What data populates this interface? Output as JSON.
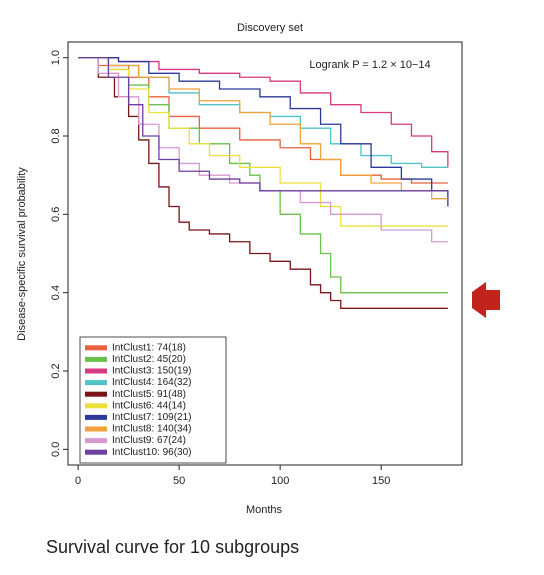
{
  "chart_data": {
    "type": "step",
    "title": "Discovery set",
    "annotation": "Logrank P = 1.2 × 10−14",
    "xlabel": "Months",
    "ylabel": "Disease-specific survival probability",
    "caption": "Survival curve for 10 subgroups",
    "xlim": [
      -5,
      190
    ],
    "ylim": [
      -0.04,
      1.04
    ],
    "xticks": [
      0,
      50,
      100,
      150
    ],
    "yticks": [
      {
        "value": 0,
        "label": "0.0"
      },
      0.2,
      0.4,
      0.6,
      0.8,
      {
        "value": 1,
        "label": "1.0"
      }
    ],
    "legend": "lower left",
    "series": [
      {
        "name": "IntClust1: 74(18)",
        "color": "#e8603c",
        "x": [
          0,
          10,
          25,
          35,
          45,
          60,
          80,
          100,
          115,
          130,
          150,
          165,
          183
        ],
        "values": [
          1.0,
          0.98,
          0.95,
          0.9,
          0.85,
          0.82,
          0.79,
          0.77,
          0.74,
          0.7,
          0.69,
          0.68,
          0.68
        ]
      },
      {
        "name": "IntClust2: 45(20)",
        "color": "#6abf4b",
        "x": [
          0,
          15,
          25,
          35,
          45,
          60,
          75,
          85,
          90,
          100,
          110,
          120,
          125,
          130,
          183
        ],
        "values": [
          1.0,
          0.97,
          0.93,
          0.88,
          0.82,
          0.78,
          0.73,
          0.7,
          0.66,
          0.6,
          0.55,
          0.5,
          0.44,
          0.4,
          0.4
        ]
      },
      {
        "name": "IntClust3: 150(19)",
        "color": "#d63a7f",
        "x": [
          0,
          20,
          40,
          60,
          80,
          95,
          110,
          125,
          140,
          155,
          165,
          175,
          183
        ],
        "values": [
          1.0,
          0.99,
          0.97,
          0.96,
          0.95,
          0.94,
          0.91,
          0.88,
          0.86,
          0.83,
          0.8,
          0.76,
          0.72
        ]
      },
      {
        "name": "IntClust4: 164(32)",
        "color": "#4fc3c8",
        "x": [
          0,
          15,
          30,
          45,
          60,
          80,
          95,
          110,
          125,
          140,
          155,
          170,
          183
        ],
        "values": [
          1.0,
          0.98,
          0.95,
          0.91,
          0.88,
          0.86,
          0.85,
          0.82,
          0.78,
          0.75,
          0.73,
          0.72,
          0.72
        ]
      },
      {
        "name": "IntClust5: 91(48)",
        "color": "#7b1416",
        "x": [
          0,
          10,
          18,
          25,
          30,
          35,
          40,
          45,
          50,
          55,
          65,
          75,
          85,
          95,
          105,
          115,
          120,
          125,
          130,
          183
        ],
        "values": [
          1.0,
          0.95,
          0.9,
          0.85,
          0.79,
          0.73,
          0.67,
          0.62,
          0.58,
          0.56,
          0.55,
          0.53,
          0.5,
          0.48,
          0.46,
          0.42,
          0.4,
          0.38,
          0.36,
          0.36
        ]
      },
      {
        "name": "IntClust6: 44(14)",
        "color": "#ece13a",
        "x": [
          0,
          15,
          25,
          35,
          45,
          55,
          65,
          80,
          100,
          120,
          130,
          183
        ],
        "values": [
          1.0,
          0.97,
          0.92,
          0.86,
          0.82,
          0.78,
          0.75,
          0.72,
          0.68,
          0.62,
          0.57,
          0.57
        ]
      },
      {
        "name": "IntClust7: 109(21)",
        "color": "#2b3a9a",
        "x": [
          0,
          20,
          35,
          50,
          70,
          90,
          105,
          120,
          130,
          145,
          160,
          175,
          183
        ],
        "values": [
          1.0,
          0.99,
          0.96,
          0.94,
          0.92,
          0.9,
          0.87,
          0.83,
          0.78,
          0.72,
          0.69,
          0.66,
          0.62
        ]
      },
      {
        "name": "IntClust8: 140(34)",
        "color": "#f2a23a",
        "x": [
          0,
          15,
          30,
          45,
          60,
          80,
          95,
          110,
          120,
          130,
          145,
          160,
          175,
          183
        ],
        "values": [
          1.0,
          0.98,
          0.95,
          0.92,
          0.89,
          0.86,
          0.83,
          0.78,
          0.74,
          0.7,
          0.68,
          0.66,
          0.64,
          0.64
        ]
      },
      {
        "name": "IntClust9: 67(24)",
        "color": "#d79ad0",
        "x": [
          0,
          10,
          20,
          30,
          40,
          50,
          60,
          75,
          90,
          110,
          125,
          150,
          175,
          183
        ],
        "values": [
          1.0,
          0.96,
          0.9,
          0.83,
          0.77,
          0.73,
          0.7,
          0.68,
          0.66,
          0.63,
          0.6,
          0.56,
          0.53,
          0.53
        ]
      },
      {
        "name": "IntClust10: 96(30)",
        "color": "#6a3fa0",
        "x": [
          0,
          15,
          25,
          32,
          40,
          50,
          65,
          80,
          90,
          150,
          183
        ],
        "values": [
          1.0,
          0.95,
          0.88,
          0.8,
          0.74,
          0.71,
          0.69,
          0.68,
          0.66,
          0.66,
          0.66
        ]
      }
    ]
  }
}
